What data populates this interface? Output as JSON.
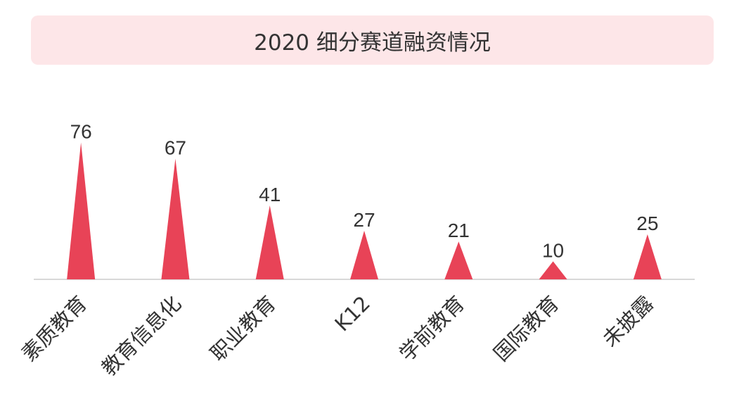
{
  "chart_data": {
    "type": "bar",
    "title": "2020 细分赛道融资情况",
    "categories": [
      "素质教育",
      "教育信息化",
      "职业教育",
      "K12",
      "学前教育",
      "国际教育",
      "未披露"
    ],
    "values": [
      76,
      67,
      41,
      27,
      21,
      10,
      25
    ],
    "ylim": [
      0,
      80
    ],
    "grid": false,
    "bar_shape": "triangle",
    "colors": {
      "bar": "#e84357",
      "title_bg": "#fde6e8",
      "axis": "#cccccc",
      "text": "#333333"
    }
  }
}
